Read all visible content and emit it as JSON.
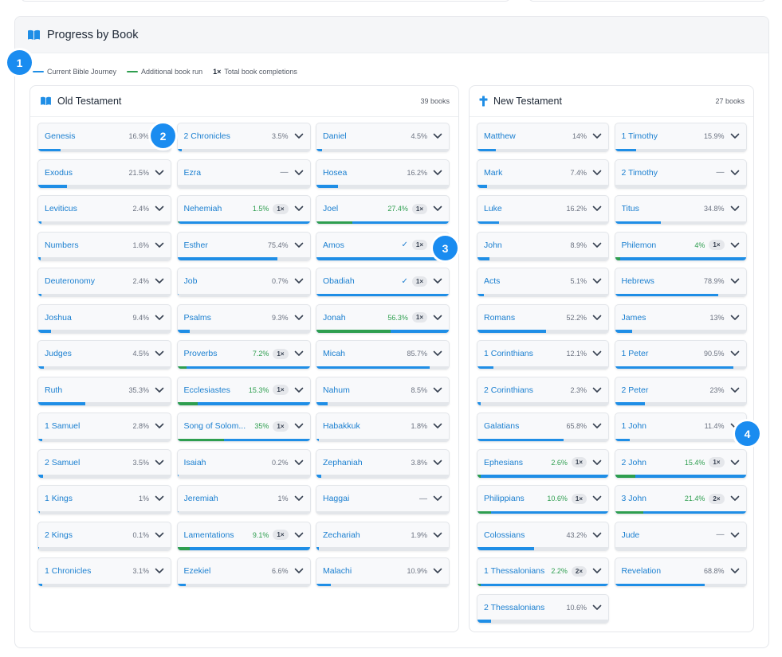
{
  "card": {
    "title": "Progress by Book"
  },
  "legend": {
    "current_label": "Current Bible Journey",
    "additional_label": "Additional book run",
    "completions_mult": "1×",
    "completions_label": "Total book completions"
  },
  "colors": {
    "current": "#1f8ee6",
    "additional": "#2e9e4f",
    "link": "#1a7fd0"
  },
  "markers": [
    "1",
    "2",
    "3",
    "4"
  ],
  "old_testament": {
    "title": "Old Testament",
    "count": "39 books",
    "books": [
      {
        "name": "Genesis",
        "pct": "16.9%",
        "progress": 16.9
      },
      {
        "name": "2 Chronicles",
        "pct": "3.5%",
        "progress": 3.5
      },
      {
        "name": "Daniel",
        "pct": "4.5%",
        "progress": 4.5
      },
      {
        "name": "Exodus",
        "pct": "21.5%",
        "progress": 21.5
      },
      {
        "name": "Ezra",
        "pct": "—",
        "progress": 0
      },
      {
        "name": "Hosea",
        "pct": "16.2%",
        "progress": 16.2
      },
      {
        "name": "Leviticus",
        "pct": "2.4%",
        "progress": 2.4
      },
      {
        "name": "Nehemiah",
        "pct": "1.5%",
        "progress": 1.5,
        "mult": "1×",
        "green": true
      },
      {
        "name": "Joel",
        "pct": "27.4%",
        "progress": 27.4,
        "mult": "1×",
        "green": true
      },
      {
        "name": "Numbers",
        "pct": "1.6%",
        "progress": 1.6
      },
      {
        "name": "Esther",
        "pct": "75.4%",
        "progress": 75.4
      },
      {
        "name": "Amos",
        "pct": "",
        "progress": 100,
        "mult": "1×",
        "check": true
      },
      {
        "name": "Deuteronomy",
        "pct": "2.4%",
        "progress": 2.4
      },
      {
        "name": "Job",
        "pct": "0.7%",
        "progress": 0.7
      },
      {
        "name": "Obadiah",
        "pct": "",
        "progress": 100,
        "mult": "1×",
        "check": true
      },
      {
        "name": "Joshua",
        "pct": "9.4%",
        "progress": 9.4
      },
      {
        "name": "Psalms",
        "pct": "9.3%",
        "progress": 9.3
      },
      {
        "name": "Jonah",
        "pct": "56.3%",
        "progress": 56.3,
        "mult": "1×",
        "green": true
      },
      {
        "name": "Judges",
        "pct": "4.5%",
        "progress": 4.5
      },
      {
        "name": "Proverbs",
        "pct": "7.2%",
        "progress": 7.2,
        "mult": "1×",
        "green": true
      },
      {
        "name": "Micah",
        "pct": "85.7%",
        "progress": 85.7
      },
      {
        "name": "Ruth",
        "pct": "35.3%",
        "progress": 35.3
      },
      {
        "name": "Ecclesiastes",
        "pct": "15.3%",
        "progress": 15.3,
        "mult": "1×",
        "green": true
      },
      {
        "name": "Nahum",
        "pct": "8.5%",
        "progress": 8.5
      },
      {
        "name": "1 Samuel",
        "pct": "2.8%",
        "progress": 2.8
      },
      {
        "name": "Song of Solom...",
        "pct": "35%",
        "progress": 35,
        "mult": "1×",
        "green": true
      },
      {
        "name": "Habakkuk",
        "pct": "1.8%",
        "progress": 1.8
      },
      {
        "name": "2 Samuel",
        "pct": "3.5%",
        "progress": 3.5
      },
      {
        "name": "Isaiah",
        "pct": "0.2%",
        "progress": 0.2
      },
      {
        "name": "Zephaniah",
        "pct": "3.8%",
        "progress": 3.8
      },
      {
        "name": "1 Kings",
        "pct": "1%",
        "progress": 1
      },
      {
        "name": "Jeremiah",
        "pct": "1%",
        "progress": 1
      },
      {
        "name": "Haggai",
        "pct": "—",
        "progress": 0
      },
      {
        "name": "2 Kings",
        "pct": "0.1%",
        "progress": 0.1
      },
      {
        "name": "Lamentations",
        "pct": "9.1%",
        "progress": 9.1,
        "mult": "1×",
        "green": true
      },
      {
        "name": "Zechariah",
        "pct": "1.9%",
        "progress": 1.9
      },
      {
        "name": "1 Chronicles",
        "pct": "3.1%",
        "progress": 3.1
      },
      {
        "name": "Ezekiel",
        "pct": "6.6%",
        "progress": 6.6
      },
      {
        "name": "Malachi",
        "pct": "10.9%",
        "progress": 10.9
      }
    ]
  },
  "new_testament": {
    "title": "New Testament",
    "count": "27 books",
    "books": [
      {
        "name": "Matthew",
        "pct": "14%",
        "progress": 14
      },
      {
        "name": "1 Timothy",
        "pct": "15.9%",
        "progress": 15.9
      },
      {
        "name": "Mark",
        "pct": "7.4%",
        "progress": 7.4
      },
      {
        "name": "2 Timothy",
        "pct": "—",
        "progress": 0
      },
      {
        "name": "Luke",
        "pct": "16.2%",
        "progress": 16.2
      },
      {
        "name": "Titus",
        "pct": "34.8%",
        "progress": 34.8
      },
      {
        "name": "John",
        "pct": "8.9%",
        "progress": 8.9
      },
      {
        "name": "Philemon",
        "pct": "4%",
        "progress": 4,
        "mult": "1×",
        "green": true
      },
      {
        "name": "Acts",
        "pct": "5.1%",
        "progress": 5.1
      },
      {
        "name": "Hebrews",
        "pct": "78.9%",
        "progress": 78.9
      },
      {
        "name": "Romans",
        "pct": "52.2%",
        "progress": 52.2
      },
      {
        "name": "James",
        "pct": "13%",
        "progress": 13
      },
      {
        "name": "1 Corinthians",
        "pct": "12.1%",
        "progress": 12.1
      },
      {
        "name": "1 Peter",
        "pct": "90.5%",
        "progress": 90.5
      },
      {
        "name": "2 Corinthians",
        "pct": "2.3%",
        "progress": 2.3
      },
      {
        "name": "2 Peter",
        "pct": "23%",
        "progress": 23
      },
      {
        "name": "Galatians",
        "pct": "65.8%",
        "progress": 65.8
      },
      {
        "name": "1 John",
        "pct": "11.4%",
        "progress": 11.4
      },
      {
        "name": "Ephesians",
        "pct": "2.6%",
        "progress": 2.6,
        "mult": "1×",
        "green": true
      },
      {
        "name": "2 John",
        "pct": "15.4%",
        "progress": 15.4,
        "mult": "1×",
        "green": true
      },
      {
        "name": "Philippians",
        "pct": "10.6%",
        "progress": 10.6,
        "mult": "1×",
        "green": true
      },
      {
        "name": "3 John",
        "pct": "21.4%",
        "progress": 21.4,
        "mult": "2×",
        "green": true
      },
      {
        "name": "Colossians",
        "pct": "43.2%",
        "progress": 43.2
      },
      {
        "name": "Jude",
        "pct": "—",
        "progress": 0
      },
      {
        "name": "1 Thessalonians",
        "pct": "2.2%",
        "progress": 2.2,
        "mult": "2×",
        "green": true
      },
      {
        "name": "Revelation",
        "pct": "68.8%",
        "progress": 68.8
      },
      {
        "name": "2 Thessalonians",
        "pct": "10.6%",
        "progress": 10.6
      }
    ]
  }
}
